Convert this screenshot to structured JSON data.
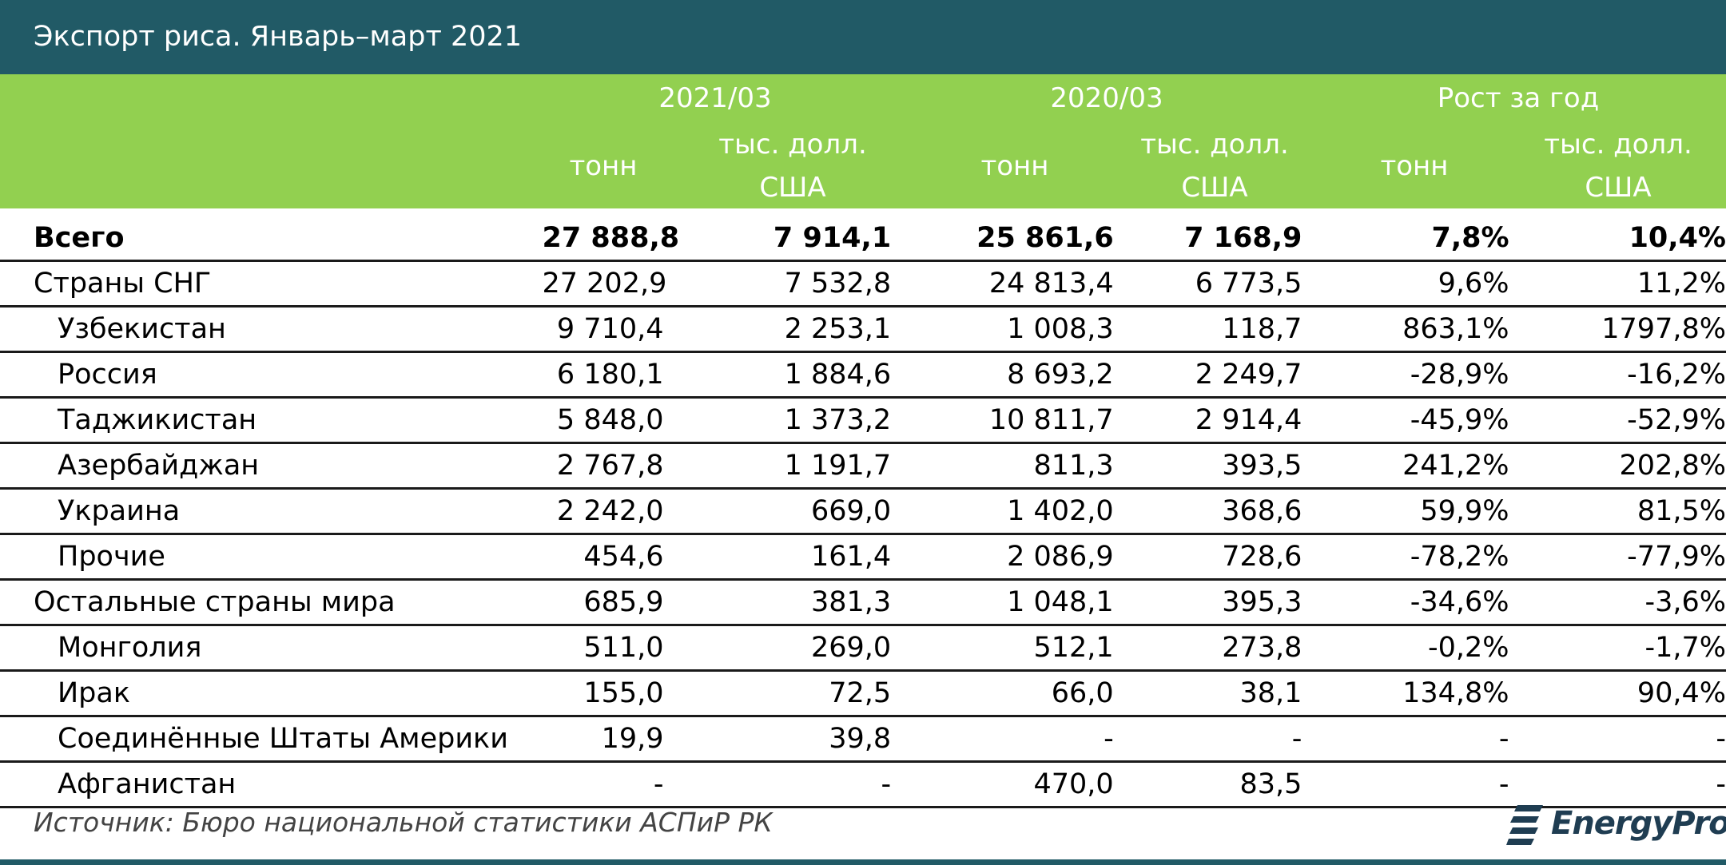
{
  "title": "Экспорт риса. Январь–март 2021",
  "header": {
    "groups": [
      "2021/03",
      "2020/03",
      "Рост за год"
    ],
    "sub_tonn": "тонн",
    "sub_usd_line1": "тыс. долл.",
    "sub_usd_line2": "США"
  },
  "rows": [
    {
      "name": "Всего",
      "indent": false,
      "bold": true,
      "values": [
        "27 888,8",
        "7 914,1",
        "25 861,6",
        "7 168,9",
        "7,8%",
        "10,4%"
      ]
    },
    {
      "name": "Страны СНГ",
      "indent": false,
      "bold": false,
      "values": [
        "27 202,9",
        "7 532,8",
        "24 813,4",
        "6 773,5",
        "9,6%",
        "11,2%"
      ]
    },
    {
      "name": "Узбекистан",
      "indent": true,
      "bold": false,
      "values": [
        "9 710,4",
        "2 253,1",
        "1 008,3",
        "118,7",
        "863,1%",
        "1797,8%"
      ]
    },
    {
      "name": "Россия",
      "indent": true,
      "bold": false,
      "values": [
        "6 180,1",
        "1 884,6",
        "8 693,2",
        "2 249,7",
        "-28,9%",
        "-16,2%"
      ]
    },
    {
      "name": "Таджикистан",
      "indent": true,
      "bold": false,
      "values": [
        "5 848,0",
        "1 373,2",
        "10 811,7",
        "2 914,4",
        "-45,9%",
        "-52,9%"
      ]
    },
    {
      "name": "Азербайджан",
      "indent": true,
      "bold": false,
      "values": [
        "2 767,8",
        "1 191,7",
        "811,3",
        "393,5",
        "241,2%",
        "202,8%"
      ]
    },
    {
      "name": "Украина",
      "indent": true,
      "bold": false,
      "values": [
        "2 242,0",
        "669,0",
        "1 402,0",
        "368,6",
        "59,9%",
        "81,5%"
      ]
    },
    {
      "name": "Прочие",
      "indent": true,
      "bold": false,
      "values": [
        "454,6",
        "161,4",
        "2 086,9",
        "728,6",
        "-78,2%",
        "-77,9%"
      ]
    },
    {
      "name": "Остальные страны мира",
      "indent": false,
      "bold": false,
      "values": [
        "685,9",
        "381,3",
        "1 048,1",
        "395,3",
        "-34,6%",
        "-3,6%"
      ]
    },
    {
      "name": "Монголия",
      "indent": true,
      "bold": false,
      "values": [
        "511,0",
        "269,0",
        "512,1",
        "273,8",
        "-0,2%",
        "-1,7%"
      ]
    },
    {
      "name": "Ирак",
      "indent": true,
      "bold": false,
      "values": [
        "155,0",
        "72,5",
        "66,0",
        "38,1",
        "134,8%",
        "90,4%"
      ]
    },
    {
      "name": "Соединённые Штаты Америки",
      "indent": true,
      "bold": false,
      "values": [
        "19,9",
        "39,8",
        "-",
        "-",
        "-",
        "-"
      ]
    },
    {
      "name": "Афганистан",
      "indent": true,
      "bold": false,
      "values": [
        "-",
        "-",
        "470,0",
        "83,5",
        "-",
        "-"
      ]
    }
  ],
  "source": "Источник: Бюро национальной статистики АСПиР РК",
  "logo": {
    "text": "EnergyProm",
    "icon": "energyprom-logo-icon",
    "color": "#1f3d52"
  },
  "colors": {
    "title_bg": "#215a66",
    "header_bg": "#92d050",
    "header_text": "#ffffff"
  }
}
